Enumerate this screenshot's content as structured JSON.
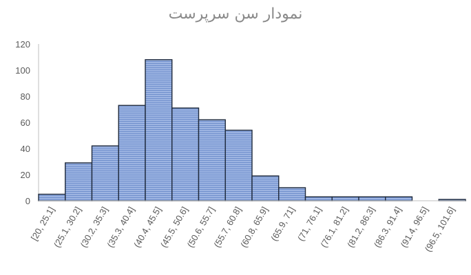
{
  "chart_data": {
    "type": "bar",
    "title": "نمودار سن سرپرست",
    "xlabel": "",
    "ylabel": "",
    "ylim": [
      0,
      120
    ],
    "yticks": [
      0,
      20,
      40,
      60,
      80,
      100,
      120
    ],
    "grid": false,
    "bar_color": "#8fa9dc",
    "bar_stroke": "#1f2a3c",
    "categories": [
      "[20, 25.1]",
      "(25.1, 30.2]",
      "(30.2, 35.3]",
      "(35.3, 40.4]",
      "(40.4, 45.5]",
      "(45.5, 50.6]",
      "(50.6, 55.7]",
      "(55.7, 60.8]",
      "(60.8, 65.9]",
      "(65.9, 71]",
      "(71, 76.1]",
      "(76.1, 81.2]",
      "(81.2, 86.3]",
      "(86.3, 91.4]",
      "(91.4, 96.5]",
      "(96.5, 101.6]"
    ],
    "values": [
      5,
      29,
      42,
      73,
      108,
      71,
      62,
      54,
      19,
      10,
      3,
      3,
      3,
      3,
      0,
      1
    ]
  }
}
